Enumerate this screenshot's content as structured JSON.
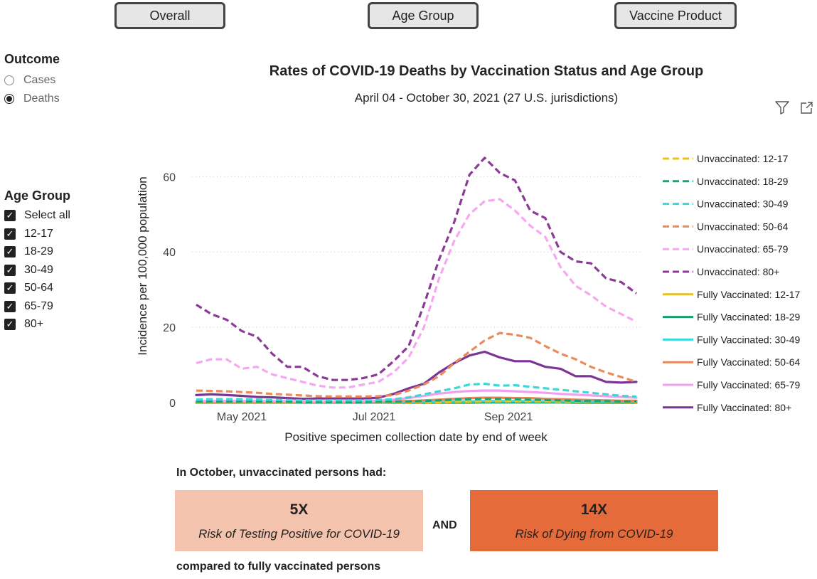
{
  "buttons": {
    "overall": "Overall",
    "age_group": "Age Group",
    "vaccine_product": "Vaccine Product"
  },
  "outcome": {
    "title": "Outcome",
    "options": [
      {
        "label": "Cases",
        "selected": false
      },
      {
        "label": "Deaths",
        "selected": true
      }
    ]
  },
  "age_group": {
    "title": "Age Group",
    "items": [
      "Select all",
      "12-17",
      "18-29",
      "30-49",
      "50-64",
      "65-79",
      "80+"
    ]
  },
  "icons": {
    "filter": "filter-icon",
    "expand": "expand-icon",
    "check": "check-icon"
  },
  "chart_data": {
    "type": "line",
    "title": "Rates of COVID-19 Deaths by Vaccination Status and Age Group",
    "subtitle": "April 04 - October 30, 2021 (27 U.S. jurisdictions)",
    "xlabel": "Positive specimen collection date by end of week",
    "ylabel": "Incidence per 100,000 population",
    "x": [
      "2021-04-10",
      "2021-04-17",
      "2021-04-24",
      "2021-05-01",
      "2021-05-08",
      "2021-05-15",
      "2021-05-22",
      "2021-05-29",
      "2021-06-05",
      "2021-06-12",
      "2021-06-19",
      "2021-06-26",
      "2021-07-03",
      "2021-07-10",
      "2021-07-17",
      "2021-07-24",
      "2021-07-31",
      "2021-08-07",
      "2021-08-14",
      "2021-08-21",
      "2021-08-28",
      "2021-09-04",
      "2021-09-11",
      "2021-09-18",
      "2021-09-25",
      "2021-10-02",
      "2021-10-09",
      "2021-10-16",
      "2021-10-23",
      "2021-10-30"
    ],
    "x_ticks": [
      {
        "date": "2021-05-01",
        "label": "May 2021"
      },
      {
        "date": "2021-07-01",
        "label": "Jul 2021"
      },
      {
        "date": "2021-09-01",
        "label": "Sep 2021"
      }
    ],
    "y_ticks": [
      0,
      20,
      40,
      60
    ],
    "ylim": [
      0,
      68
    ],
    "grid": true,
    "legend_position": "right",
    "series": [
      {
        "name": "Unvaccinated: 12-17",
        "color": "#e8c31e",
        "dash": true,
        "values": [
          0.1,
          0.1,
          0.1,
          0.1,
          0.1,
          0.1,
          0.1,
          0.1,
          0.1,
          0.1,
          0.1,
          0.1,
          0.1,
          0.1,
          0.1,
          0.1,
          0.1,
          0.2,
          0.2,
          0.3,
          0.3,
          0.3,
          0.3,
          0.3,
          0.2,
          0.2,
          0.2,
          0.2,
          0.2,
          0.1
        ]
      },
      {
        "name": "Unvaccinated: 18-29",
        "color": "#16a574",
        "dash": true,
        "values": [
          0.2,
          0.2,
          0.2,
          0.2,
          0.2,
          0.2,
          0.2,
          0.1,
          0.1,
          0.1,
          0.1,
          0.1,
          0.2,
          0.2,
          0.3,
          0.4,
          0.6,
          0.8,
          0.9,
          1.0,
          1.0,
          0.9,
          0.8,
          0.7,
          0.6,
          0.5,
          0.4,
          0.4,
          0.3,
          0.3
        ]
      },
      {
        "name": "Unvaccinated: 30-49",
        "color": "#3fd6d6",
        "dash": true,
        "values": [
          0.8,
          0.9,
          0.9,
          0.9,
          0.8,
          0.7,
          0.7,
          0.6,
          0.6,
          0.6,
          0.6,
          0.6,
          0.7,
          0.9,
          1.4,
          2.2,
          3.0,
          3.8,
          4.8,
          5.0,
          4.5,
          4.6,
          4.2,
          3.8,
          3.4,
          3.0,
          2.6,
          2.2,
          1.8,
          1.6
        ]
      },
      {
        "name": "Unvaccinated: 50-64",
        "color": "#e98b5c",
        "dash": true,
        "values": [
          3.2,
          3.1,
          3.0,
          2.8,
          2.6,
          2.3,
          2.1,
          1.9,
          1.7,
          1.6,
          1.6,
          1.6,
          1.7,
          2.0,
          3.2,
          4.8,
          7.0,
          10.5,
          13.5,
          16.5,
          18.5,
          18.0,
          17.2,
          15.0,
          13.0,
          11.5,
          9.5,
          8.0,
          6.8,
          5.5
        ]
      },
      {
        "name": "Unvaccinated: 65-79",
        "color": "#f7a7f2",
        "dash": true,
        "values": [
          10.5,
          11.5,
          11.5,
          9.0,
          9.5,
          7.5,
          6.5,
          5.5,
          4.5,
          4.0,
          4.0,
          4.8,
          5.5,
          8.0,
          12.0,
          20.0,
          33.0,
          43.0,
          50.0,
          53.5,
          54.0,
          51.0,
          47.0,
          44.0,
          36.0,
          31.0,
          28.5,
          25.5,
          23.5,
          21.5
        ]
      },
      {
        "name": "Unvaccinated: 80+",
        "color": "#8b3a96",
        "dash": true,
        "values": [
          26.0,
          23.5,
          22.0,
          19.0,
          17.5,
          13.0,
          9.5,
          9.5,
          7.0,
          6.0,
          6.0,
          6.5,
          7.5,
          11.0,
          15.0,
          26.0,
          38.0,
          48.0,
          60.5,
          65.0,
          61.0,
          59.0,
          51.0,
          49.0,
          40.0,
          37.5,
          37.0,
          33.0,
          32.0,
          29.0
        ]
      },
      {
        "name": "Fully Vaccinated: 12-17",
        "color": "#e0c32a",
        "dash": false,
        "values": [
          0,
          0,
          0,
          0,
          0,
          0,
          0,
          0,
          0,
          0,
          0,
          0,
          0,
          0,
          0,
          0,
          0,
          0,
          0,
          0,
          0,
          0,
          0,
          0,
          0,
          0,
          0,
          0,
          0,
          0
        ]
      },
      {
        "name": "Fully Vaccinated: 18-29",
        "color": "#1a9e6c",
        "dash": false,
        "values": [
          0,
          0,
          0,
          0,
          0,
          0,
          0,
          0,
          0,
          0,
          0,
          0,
          0,
          0,
          0,
          0,
          0,
          0,
          0,
          0.1,
          0.1,
          0.1,
          0.1,
          0.1,
          0.1,
          0,
          0,
          0,
          0,
          0
        ]
      },
      {
        "name": "Fully Vaccinated: 30-49",
        "color": "#37d8df",
        "dash": false,
        "values": [
          0,
          0,
          0,
          0,
          0,
          0,
          0,
          0,
          0,
          0,
          0,
          0,
          0,
          0.1,
          0.1,
          0.2,
          0.2,
          0.3,
          0.3,
          0.4,
          0.4,
          0.4,
          0.4,
          0.3,
          0.3,
          0.3,
          0.2,
          0.2,
          0.2,
          0.2
        ]
      },
      {
        "name": "Fully Vaccinated: 50-64",
        "color": "#e9875a",
        "dash": false,
        "values": [
          0.1,
          0.1,
          0.1,
          0.1,
          0.1,
          0.1,
          0.1,
          0.1,
          0.1,
          0.1,
          0.1,
          0.1,
          0.2,
          0.3,
          0.4,
          0.6,
          0.8,
          1.0,
          1.2,
          1.3,
          1.3,
          1.2,
          1.2,
          1.0,
          0.9,
          0.8,
          0.7,
          0.6,
          0.5,
          0.5
        ]
      },
      {
        "name": "Fully Vaccinated: 65-79",
        "color": "#f19ff0",
        "dash": false,
        "values": [
          0.4,
          0.4,
          0.4,
          0.4,
          0.4,
          0.4,
          0.4,
          0.3,
          0.3,
          0.3,
          0.4,
          0.4,
          0.5,
          0.8,
          1.2,
          1.8,
          2.4,
          2.8,
          3.1,
          3.2,
          3.2,
          3.0,
          2.8,
          2.6,
          2.3,
          2.1,
          1.9,
          1.7,
          1.5,
          1.3
        ]
      },
      {
        "name": "Fully Vaccinated: 80+",
        "color": "#7c3596",
        "dash": false,
        "values": [
          2.0,
          2.2,
          2.0,
          1.8,
          1.5,
          1.4,
          1.2,
          1.0,
          1.1,
          1.1,
          1.1,
          1.1,
          1.3,
          2.3,
          3.8,
          5.0,
          8.0,
          10.5,
          12.5,
          13.5,
          12.0,
          11.0,
          11.0,
          9.5,
          9.0,
          7.0,
          7.0,
          5.5,
          5.3,
          5.5
        ]
      }
    ]
  },
  "summary": {
    "heading": "In October, unvaccinated persons had:",
    "left_value": "5X",
    "left_text": "Risk of Testing Positive for COVID-19",
    "connector": "AND",
    "right_value": "14X",
    "right_text": "Risk of Dying from COVID-19",
    "footer": "compared to fully vaccinated persons"
  }
}
